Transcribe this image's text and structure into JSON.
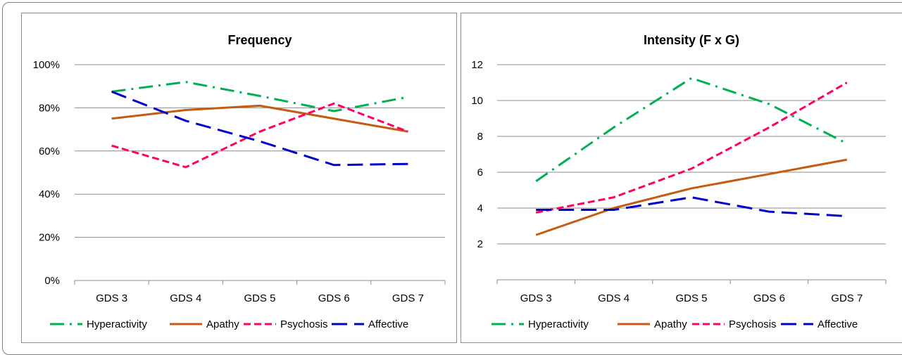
{
  "series_styles": {
    "Hyperactivity": {
      "color": "#00b050",
      "dash": "dashdot"
    },
    "Apathy": {
      "color": "#c55a11",
      "dash": "solid"
    },
    "Psychosis": {
      "color": "#ff0066",
      "dash": "dash"
    },
    "Affective": {
      "color": "#0000cc",
      "dash": "longdash"
    }
  },
  "chart_data": [
    {
      "type": "line",
      "title": "Frequency",
      "categories": [
        "GDS 3",
        "GDS 4",
        "GDS 5",
        "GDS 6",
        "GDS 7"
      ],
      "ylim": [
        0,
        100
      ],
      "y_tick_values": [
        0,
        20,
        40,
        60,
        80,
        100
      ],
      "y_ticks": [
        "0%",
        "20%",
        "40%",
        "60%",
        "80%",
        "100%"
      ],
      "grid": true,
      "legend": "bottom",
      "series": [
        {
          "name": "Hyperactivity",
          "values": [
            87.5,
            92,
            85.5,
            78.5,
            85
          ]
        },
        {
          "name": "Apathy",
          "values": [
            75,
            79,
            81,
            75,
            69
          ]
        },
        {
          "name": "Psychosis",
          "values": [
            62.5,
            52.5,
            69,
            82,
            69
          ]
        },
        {
          "name": "Affective",
          "values": [
            87.5,
            74,
            64.5,
            53.5,
            54
          ]
        }
      ]
    },
    {
      "type": "line",
      "title": "Intensity (F x G)",
      "categories": [
        "GDS 3",
        "GDS 4",
        "GDS 5",
        "GDS 6",
        "GDS 7"
      ],
      "ylim": [
        0,
        12
      ],
      "y_tick_values": [
        2,
        4,
        6,
        8,
        10,
        12
      ],
      "y_ticks": [
        "2",
        "4",
        "6",
        "8",
        "10",
        "12"
      ],
      "grid": true,
      "legend": "bottom",
      "series": [
        {
          "name": "Hyperactivity",
          "values": [
            5.5,
            8.5,
            11.25,
            9.8,
            7.6
          ]
        },
        {
          "name": "Apathy",
          "values": [
            2.5,
            4.0,
            5.1,
            5.9,
            6.7
          ]
        },
        {
          "name": "Psychosis",
          "values": [
            3.75,
            4.6,
            6.2,
            8.5,
            11.0
          ]
        },
        {
          "name": "Affective",
          "values": [
            3.9,
            3.9,
            4.6,
            3.8,
            3.55
          ]
        }
      ]
    }
  ]
}
